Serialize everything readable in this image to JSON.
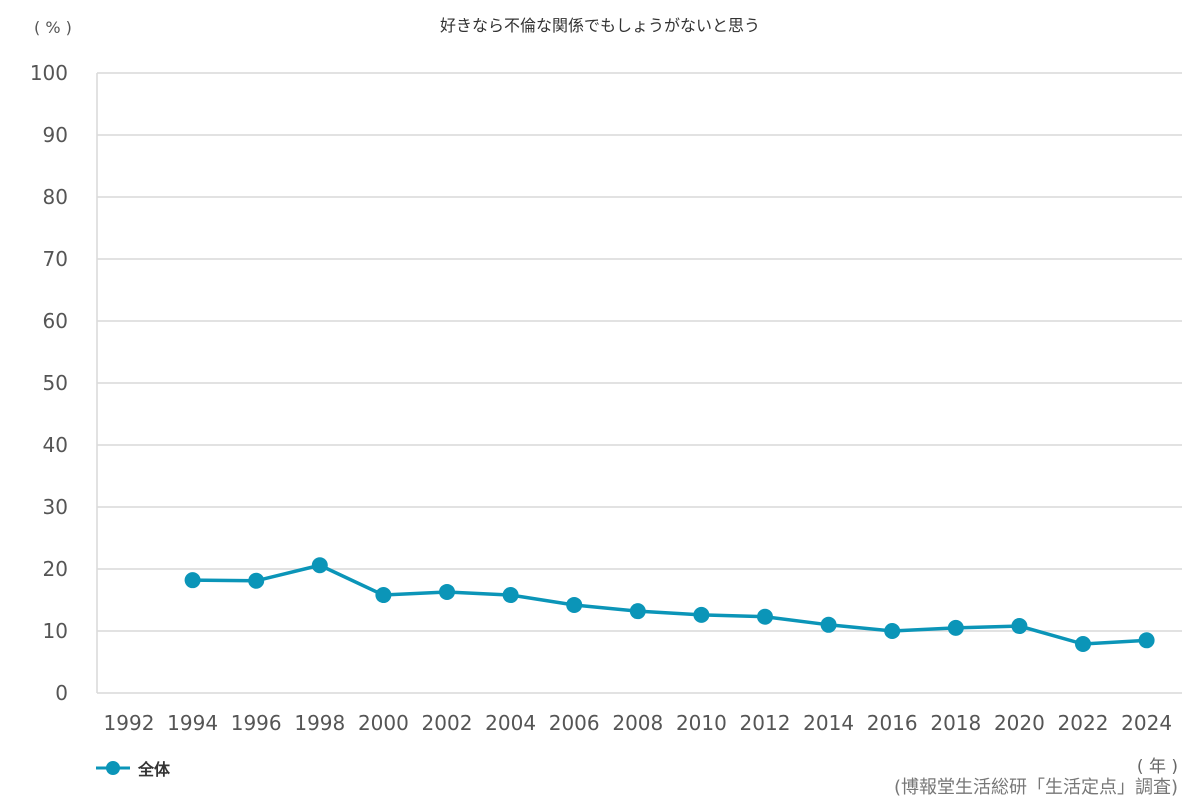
{
  "chart_data": {
    "type": "line",
    "title": "好きなら不倫な関係でもしょうがないと思う",
    "ylabel": "( % )",
    "xlabel": "( 年 )",
    "ylim": [
      0,
      100
    ],
    "yticks": [
      0,
      10,
      20,
      30,
      40,
      50,
      60,
      70,
      80,
      90,
      100
    ],
    "categories": [
      "1992",
      "1994",
      "1996",
      "1998",
      "2000",
      "2002",
      "2004",
      "2006",
      "2008",
      "2010",
      "2012",
      "2014",
      "2016",
      "2018",
      "2020",
      "2022",
      "2024"
    ],
    "grid": true,
    "legend_position": "bottom-left",
    "series": [
      {
        "name": "全体",
        "color": "#0b95b8",
        "values": [
          null,
          18.2,
          18.1,
          20.6,
          15.8,
          16.3,
          15.8,
          14.2,
          13.2,
          12.6,
          12.3,
          11.0,
          10.0,
          10.5,
          10.8,
          7.9,
          8.5
        ]
      }
    ],
    "source": "(博報堂生活総研「生活定点」調査)"
  }
}
